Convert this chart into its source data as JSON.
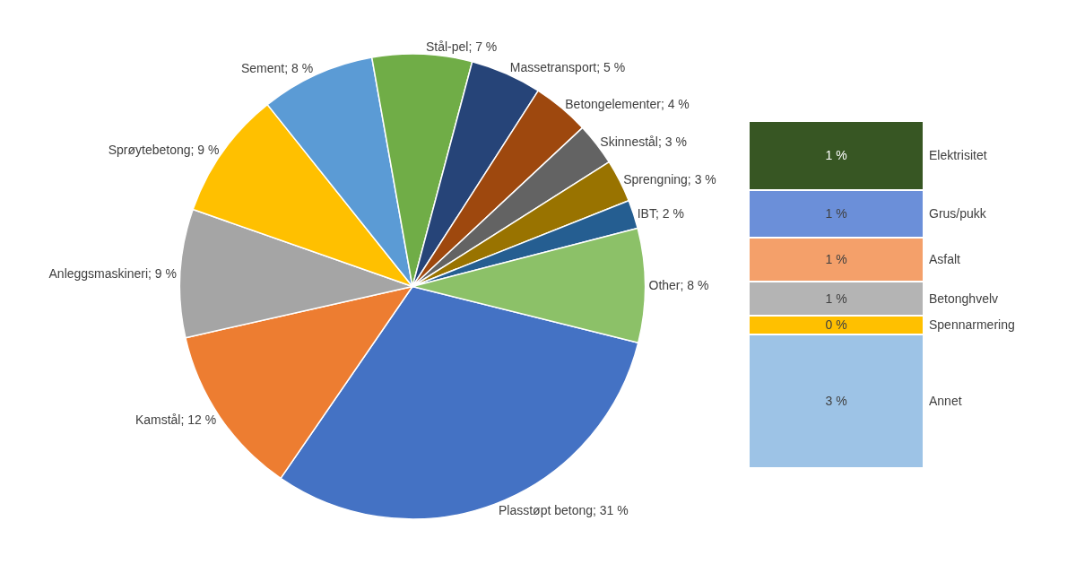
{
  "chart_data": [
    {
      "type": "pie",
      "categories": [
        "Plasstøpt betong",
        "Kamstål",
        "Anleggsmaskineri",
        "Sprøytebetong",
        "Sement",
        "Stål-pel",
        "Massetransport",
        "Betongelementer",
        "Skinnestål",
        "Sprengning",
        "IBT",
        "Other"
      ],
      "values": [
        31,
        12,
        9,
        9,
        8,
        7,
        5,
        4,
        3,
        3,
        2,
        8
      ],
      "value_labels": [
        "31 %",
        "12 %",
        "9 %",
        "9 %",
        "8 %",
        "7 %",
        "5 %",
        "4 %",
        "3 %",
        "3 %",
        "2 %",
        "8 %"
      ],
      "colors": [
        "#4472c4",
        "#ed7d31",
        "#a5a5a5",
        "#ffc000",
        "#5b9bd5",
        "#70ad47",
        "#264478",
        "#9e480e",
        "#636363",
        "#997300",
        "#255e91",
        "#8cc168"
      ]
    },
    {
      "type": "bar",
      "stacked": true,
      "categories": [
        null
      ],
      "series": [
        {
          "name": "Annet",
          "color": "#9dc3e6",
          "values": [
            2.9
          ],
          "value_labels": [
            "3 %"
          ]
        },
        {
          "name": "Spennarmering",
          "color": "#ffc000",
          "values": [
            0.41
          ],
          "value_labels": [
            "0 %"
          ]
        },
        {
          "name": "Betonghvelv",
          "color": "#b4b4b4",
          "values": [
            0.74
          ],
          "value_labels": [
            "1 %"
          ]
        },
        {
          "name": "Asfalt",
          "color": "#f4a06a",
          "values": [
            0.95
          ],
          "value_labels": [
            "1 %"
          ]
        },
        {
          "name": "Grus/pukk",
          "color": "#6b8fd9",
          "values": [
            1.03
          ],
          "value_labels": [
            "1 %"
          ]
        },
        {
          "name": "Elektrisitet",
          "color": "#375623",
          "values": [
            1.49
          ],
          "value_labels": [
            "1 %"
          ]
        }
      ]
    }
  ]
}
